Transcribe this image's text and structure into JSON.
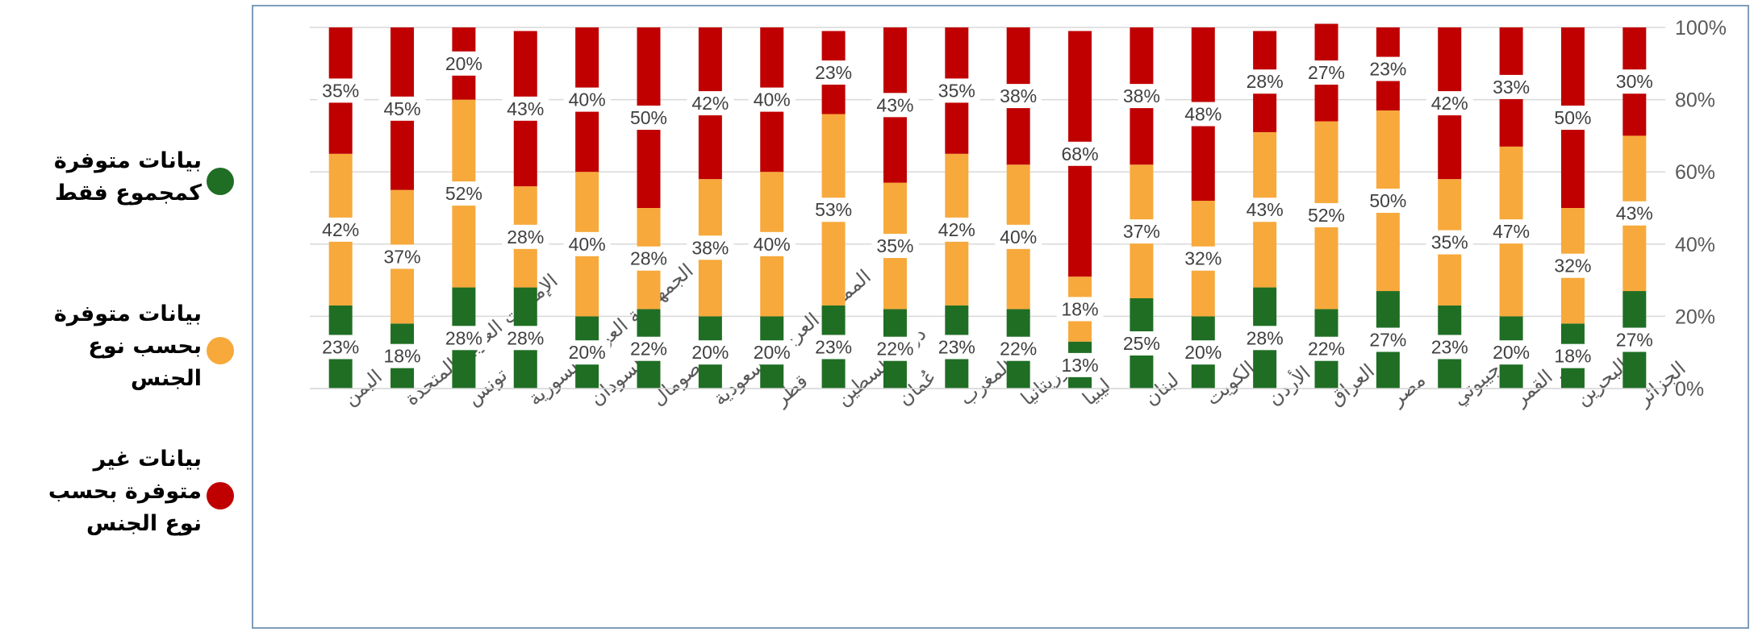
{
  "legend": [
    {
      "label": "بيانات متوفرة كمجموع فقط",
      "color": "#1f6e24",
      "color_name": "green"
    },
    {
      "label": "بيانات متوفرة بحسب نوع الجنس",
      "color": "#f7a93b",
      "color_name": "orange"
    },
    {
      "label": "بيانات غير متوفرة بحسب نوع الجنس",
      "color": "#c00000",
      "color_name": "red"
    }
  ],
  "chart_data": {
    "type": "bar",
    "stacked": true,
    "percent_stacked": true,
    "categories": [
      "اليمن",
      "الإمارات العربية المتحدة",
      "تونس",
      "الجمهورية العربية السورية",
      "السودان",
      "الصومال",
      "المملكة العربية السعودية",
      "قطر",
      "دولة فلسطين",
      "عُمان",
      "المغرب",
      "موريتانيا",
      "ليبيا",
      "لبنان",
      "الكويت",
      "الأردن",
      "العراق",
      "مصر",
      "جيبوتي",
      "جزر القمر",
      "البحرين",
      "الجزائر"
    ],
    "series": [
      {
        "name": "بيانات متوفرة كمجموع فقط",
        "color": "#1f6e24",
        "values": [
          23,
          18,
          28,
          28,
          20,
          22,
          20,
          20,
          23,
          22,
          23,
          22,
          13,
          25,
          20,
          28,
          22,
          27,
          23,
          20,
          18,
          27
        ],
        "labels": [
          "23%",
          "18%",
          "28%",
          "28%",
          "20%",
          "22%",
          "20%",
          "20%",
          "23%",
          "22%",
          "23%",
          "22%",
          "13%",
          "25%",
          "20%",
          "28%",
          "22%",
          "27%",
          "23%",
          "20%",
          "18%",
          "27%"
        ]
      },
      {
        "name": "بيانات متوفرة بحسب نوع الجنس",
        "color": "#f7a93b",
        "values": [
          42,
          37,
          52,
          28,
          40,
          28,
          38,
          40,
          53,
          35,
          42,
          40,
          18,
          37,
          32,
          43,
          52,
          50,
          35,
          47,
          32,
          43
        ],
        "labels": [
          "42%",
          "37%",
          "52%",
          "28%",
          "40%",
          "28%",
          "38%",
          "40%",
          "53%",
          "35%",
          "42%",
          "40%",
          "18%",
          "37%",
          "32%",
          "43%",
          "52%",
          "50%",
          "35%",
          "47%",
          "32%",
          "43%"
        ]
      },
      {
        "name": "بيانات غير متوفرة بحسب نوع الجنس",
        "color": "#c00000",
        "values": [
          35,
          45,
          20,
          43,
          40,
          50,
          42,
          40,
          23,
          43,
          35,
          38,
          68,
          38,
          48,
          28,
          27,
          23,
          42,
          33,
          50,
          30
        ],
        "labels": [
          "35%",
          "45%",
          "20%",
          "43%",
          "40%",
          "50%",
          "42%",
          "40%",
          "23%",
          "43%",
          "35%",
          "38%",
          "68%",
          "38%",
          "48%",
          "28%",
          "27%",
          "23%",
          "42%",
          "33%",
          "50%",
          "30%"
        ]
      }
    ],
    "y_ticks": [
      "0%",
      "20%",
      "40%",
      "60%",
      "80%",
      "100%"
    ],
    "ylim": [
      0,
      100
    ],
    "y_axis_side": "right",
    "grid": true,
    "legend_position": "left",
    "title": "",
    "xlabel": "",
    "ylabel": ""
  }
}
